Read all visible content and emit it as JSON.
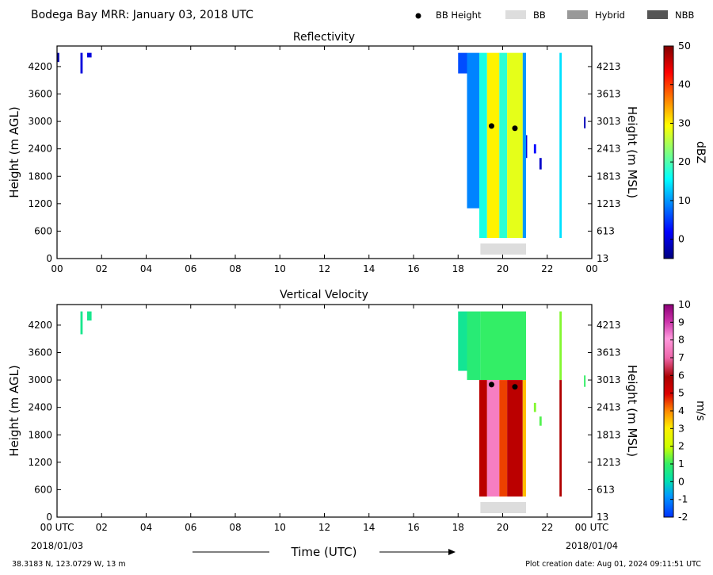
{
  "header": {
    "title": "Bodega Bay MRR:  January 03, 2018 UTC",
    "legend": [
      {
        "label": "BB Height",
        "kind": "dot",
        "color": "#000000"
      },
      {
        "label": "BB",
        "kind": "box",
        "color": "#dddddd"
      },
      {
        "label": "Hybrid",
        "kind": "box",
        "color": "#999999"
      },
      {
        "label": "NBB",
        "kind": "box",
        "color": "#555555"
      }
    ]
  },
  "footer": {
    "location": "38.3183 N, 123.0729 W, 13 m",
    "creation": "Plot creation date: Aug 01, 2024 09:11:51 UTC",
    "xlabel": "Time (UTC)",
    "start_date": "2018/01/03",
    "end_date": "2018/01/04"
  },
  "chart_data": [
    {
      "type": "heatmap",
      "title": "Reflectivity",
      "ylabel": "Height (m AGL)",
      "ylabel_right": "Height (m MSL)",
      "colorbar_label": "dBZ",
      "xlim": [
        0,
        24
      ],
      "ylim": [
        0,
        4650
      ],
      "x_ticks": [
        "00",
        "02",
        "04",
        "06",
        "08",
        "10",
        "12",
        "14",
        "16",
        "18",
        "20",
        "22",
        "00"
      ],
      "y_ticks": [
        0,
        600,
        1200,
        1800,
        2400,
        3000,
        3600,
        4200
      ],
      "y_ticks_right": [
        "13",
        "613",
        "1213",
        "1813",
        "2413",
        "3013",
        "3613",
        "4213"
      ],
      "colorbar_ticks": [
        0,
        10,
        20,
        30,
        40,
        50
      ],
      "colorbar_range": [
        -5,
        50
      ],
      "bb_height_points": [
        {
          "x": 19.5,
          "y": 2900
        },
        {
          "x": 20.55,
          "y": 2850
        }
      ],
      "bb_period": {
        "start": 19.0,
        "end": 21.05,
        "type": "BB"
      },
      "echo_columns": [
        {
          "x0": 0.0,
          "x1": 0.1,
          "y0": 4300,
          "y1": 4500,
          "value": -3
        },
        {
          "x0": 1.05,
          "x1": 1.15,
          "y0": 4050,
          "y1": 4500,
          "value": 0
        },
        {
          "x0": 1.35,
          "x1": 1.55,
          "y0": 4400,
          "y1": 4500,
          "value": 0
        },
        {
          "x0": 18.0,
          "x1": 18.4,
          "y0": 4050,
          "y1": 4500,
          "value": 6
        },
        {
          "x0": 18.4,
          "x1": 18.95,
          "y0": 1100,
          "y1": 4500,
          "value": 9
        },
        {
          "x0": 18.95,
          "x1": 19.3,
          "y0": 450,
          "y1": 4500,
          "value": 17
        },
        {
          "x0": 19.3,
          "x1": 19.85,
          "y0": 450,
          "y1": 4500,
          "value": 30
        },
        {
          "x0": 19.85,
          "x1": 20.2,
          "y0": 450,
          "y1": 4500,
          "value": 18
        },
        {
          "x0": 20.2,
          "x1": 20.9,
          "y0": 450,
          "y1": 4500,
          "value": 28
        },
        {
          "x0": 20.9,
          "x1": 21.05,
          "y0": 450,
          "y1": 4500,
          "value": 10
        },
        {
          "x0": 21.05,
          "x1": 21.1,
          "y0": 2200,
          "y1": 2700,
          "value": 0
        },
        {
          "x0": 21.4,
          "x1": 21.5,
          "y0": 2300,
          "y1": 2500,
          "value": 2
        },
        {
          "x0": 21.65,
          "x1": 21.75,
          "y0": 1950,
          "y1": 2200,
          "value": -1
        },
        {
          "x0": 22.55,
          "x1": 22.65,
          "y0": 450,
          "y1": 4500,
          "value": 14
        },
        {
          "x0": 23.65,
          "x1": 23.72,
          "y0": 2850,
          "y1": 3100,
          "value": -2
        }
      ]
    },
    {
      "type": "heatmap",
      "title": "Vertical Velocity",
      "ylabel": "Height (m AGL)",
      "ylabel_right": "Height (m MSL)",
      "colorbar_label": "m/s",
      "xlim": [
        0,
        24
      ],
      "ylim": [
        0,
        4650
      ],
      "x_ticks": [
        "00 UTC",
        "02",
        "04",
        "06",
        "08",
        "10",
        "12",
        "14",
        "16",
        "18",
        "20",
        "22",
        "00 UTC"
      ],
      "y_ticks": [
        0,
        600,
        1200,
        1800,
        2400,
        3000,
        3600,
        4200
      ],
      "y_ticks_right": [
        "13",
        "613",
        "1213",
        "1813",
        "2413",
        "3013",
        "3613",
        "4213"
      ],
      "colorbar_ticks": [
        -2,
        -1,
        0,
        1,
        2,
        3,
        4,
        5,
        6,
        7,
        8,
        9,
        10
      ],
      "colorbar_range": [
        -2,
        10
      ],
      "bb_height_points": [
        {
          "x": 19.5,
          "y": 2900
        },
        {
          "x": 20.55,
          "y": 2850
        }
      ],
      "bb_period": {
        "start": 19.0,
        "end": 21.05,
        "type": "BB"
      },
      "echo_columns": [
        {
          "x0": 1.05,
          "x1": 1.15,
          "y0": 4000,
          "y1": 4500,
          "value": 0.5
        },
        {
          "x0": 1.35,
          "x1": 1.55,
          "y0": 4300,
          "y1": 4500,
          "value": 0.5
        },
        {
          "x0": 18.0,
          "x1": 18.4,
          "y0": 3200,
          "y1": 4500,
          "value": 0.4
        },
        {
          "x0": 18.4,
          "x1": 19.0,
          "y0": 3000,
          "y1": 4500,
          "value": 0.8
        },
        {
          "x0": 19.0,
          "x1": 21.05,
          "y0": 3000,
          "y1": 4500,
          "value": 1.0
        },
        {
          "x0": 18.95,
          "x1": 19.3,
          "y0": 450,
          "y1": 3000,
          "value": 5.6
        },
        {
          "x0": 19.3,
          "x1": 19.85,
          "y0": 450,
          "y1": 3000,
          "value": 7.5
        },
        {
          "x0": 19.85,
          "x1": 20.2,
          "y0": 450,
          "y1": 3000,
          "value": 4.5
        },
        {
          "x0": 20.2,
          "x1": 20.9,
          "y0": 450,
          "y1": 3000,
          "value": 5.6
        },
        {
          "x0": 20.9,
          "x1": 21.05,
          "y0": 450,
          "y1": 3000,
          "value": 3.5
        },
        {
          "x0": 21.4,
          "x1": 21.5,
          "y0": 2300,
          "y1": 2500,
          "value": 1.5
        },
        {
          "x0": 21.65,
          "x1": 21.75,
          "y0": 2000,
          "y1": 2200,
          "value": 1.2
        },
        {
          "x0": 22.55,
          "x1": 22.65,
          "y0": 3000,
          "y1": 4500,
          "value": 1.5
        },
        {
          "x0": 22.55,
          "x1": 22.65,
          "y0": 450,
          "y1": 3000,
          "value": 5.8
        },
        {
          "x0": 23.65,
          "x1": 23.72,
          "y0": 2850,
          "y1": 3100,
          "value": 1.0
        }
      ]
    }
  ]
}
